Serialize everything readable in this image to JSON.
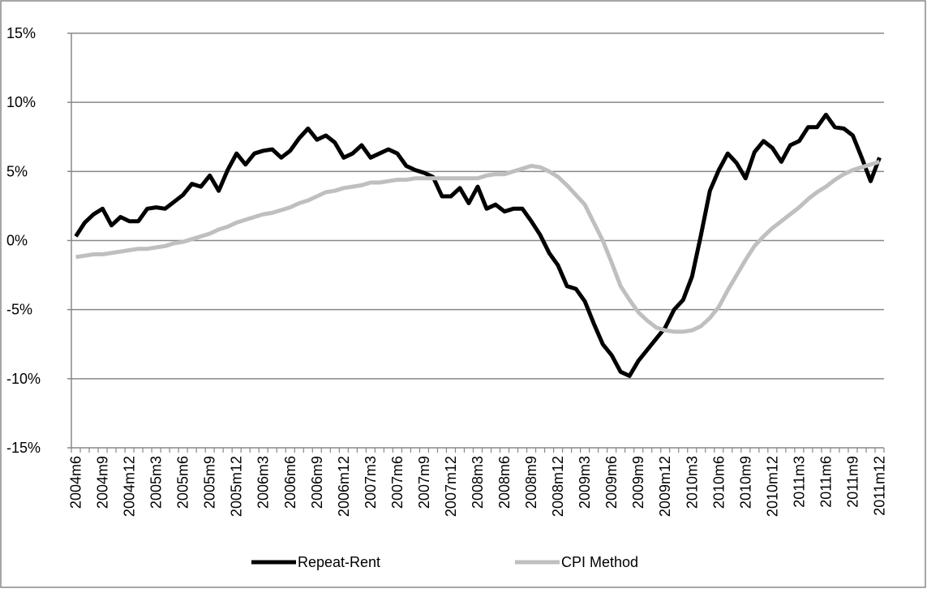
{
  "chart_data": {
    "type": "line",
    "categories": [
      "2004m6",
      null,
      null,
      "2004m9",
      null,
      null,
      "2004m12",
      null,
      null,
      "2005m3",
      null,
      null,
      "2005m6",
      null,
      null,
      "2005m9",
      null,
      null,
      "2005m12",
      null,
      null,
      "2006m3",
      null,
      null,
      "2006m6",
      null,
      null,
      "2006m9",
      null,
      null,
      "2006m12",
      null,
      null,
      "2007m3",
      null,
      null,
      "2007m6",
      null,
      null,
      "2007m9",
      null,
      null,
      "2007m12",
      null,
      null,
      "2008m3",
      null,
      null,
      "2008m6",
      null,
      null,
      "2008m9",
      null,
      null,
      "2008m12",
      null,
      null,
      "2009m3",
      null,
      null,
      "2009m6",
      null,
      null,
      "2009m9",
      null,
      null,
      "2009m12",
      null,
      null,
      "2010m3",
      null,
      null,
      "2010m6",
      null,
      null,
      "2010m9",
      null,
      null,
      "2010m12",
      null,
      null,
      "2011m3",
      null,
      null,
      "2011m6",
      null,
      null,
      "2011m9",
      null,
      null,
      "2011m12"
    ],
    "series": [
      {
        "name": "Repeat-Rent",
        "color": "#000000",
        "values": [
          0.3,
          1.3,
          1.9,
          2.3,
          1.1,
          1.7,
          1.4,
          1.4,
          2.3,
          2.4,
          2.3,
          2.8,
          3.3,
          4.1,
          3.9,
          4.7,
          3.6,
          5.1,
          6.3,
          5.5,
          6.3,
          6.5,
          6.6,
          6.0,
          6.5,
          7.4,
          8.1,
          7.3,
          7.6,
          7.1,
          6.0,
          6.3,
          6.9,
          6.0,
          6.3,
          6.6,
          6.3,
          5.4,
          5.1,
          4.9,
          4.6,
          3.2,
          3.2,
          3.8,
          2.7,
          3.9,
          2.3,
          2.6,
          2.1,
          2.3,
          2.3,
          1.4,
          0.4,
          -0.9,
          -1.8,
          -3.3,
          -3.5,
          -4.4,
          -6.0,
          -7.5,
          -8.3,
          -9.5,
          -9.8,
          -8.7,
          -7.9,
          -7.1,
          -6.3,
          -5.0,
          -4.3,
          -2.6,
          0.4,
          3.6,
          5.1,
          6.3,
          5.6,
          4.5,
          6.4,
          7.2,
          6.7,
          5.7,
          6.9,
          7.2,
          8.2,
          8.2,
          9.1,
          8.2,
          8.1,
          7.6,
          6.0,
          4.3,
          6.0
        ]
      },
      {
        "name": "CPI Method",
        "color": "#bfbfbf",
        "values": [
          -1.2,
          -1.1,
          -1.0,
          -1.0,
          -0.9,
          -0.8,
          -0.7,
          -0.6,
          -0.6,
          -0.5,
          -0.4,
          -0.2,
          -0.1,
          0.1,
          0.3,
          0.5,
          0.8,
          1.0,
          1.3,
          1.5,
          1.7,
          1.9,
          2.0,
          2.2,
          2.4,
          2.7,
          2.9,
          3.2,
          3.5,
          3.6,
          3.8,
          3.9,
          4.0,
          4.2,
          4.2,
          4.3,
          4.4,
          4.4,
          4.5,
          4.5,
          4.5,
          4.5,
          4.5,
          4.5,
          4.5,
          4.5,
          4.7,
          4.8,
          4.8,
          5.0,
          5.2,
          5.4,
          5.3,
          5.0,
          4.6,
          4.0,
          3.3,
          2.6,
          1.3,
          0.0,
          -1.6,
          -3.3,
          -4.3,
          -5.2,
          -5.8,
          -6.3,
          -6.5,
          -6.6,
          -6.6,
          -6.5,
          -6.2,
          -5.6,
          -4.8,
          -3.6,
          -2.5,
          -1.4,
          -0.4,
          0.3,
          0.9,
          1.4,
          1.9,
          2.4,
          3.0,
          3.5,
          3.9,
          4.4,
          4.8,
          5.1,
          5.3,
          5.5,
          5.7
        ]
      }
    ],
    "ylim": [
      -15,
      15
    ],
    "yticks": [
      {
        "value": -15,
        "label": "-15%"
      },
      {
        "value": -10,
        "label": "-10%"
      },
      {
        "value": -5,
        "label": "-5%"
      },
      {
        "value": 0,
        "label": "0%"
      },
      {
        "value": 5,
        "label": "5%"
      },
      {
        "value": 10,
        "label": "10%"
      },
      {
        "value": 15,
        "label": "15%"
      }
    ],
    "grid": true,
    "legend": "bottom"
  }
}
